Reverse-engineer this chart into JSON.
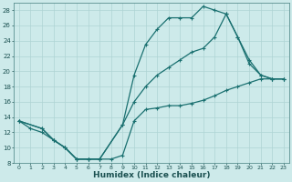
{
  "xlabel": "Humidex (Indice chaleur)",
  "background_color": "#cdeaea",
  "grid_color": "#aed4d4",
  "line_color": "#1a7070",
  "xlim": [
    -0.5,
    23.5
  ],
  "ylim": [
    8,
    29
  ],
  "xticks": [
    0,
    1,
    2,
    3,
    4,
    5,
    6,
    7,
    8,
    9,
    10,
    11,
    12,
    13,
    14,
    15,
    16,
    17,
    18,
    19,
    20,
    21,
    22,
    23
  ],
  "yticks": [
    8,
    10,
    12,
    14,
    16,
    18,
    20,
    22,
    24,
    26,
    28
  ],
  "curve1_x": [
    0,
    1,
    2,
    3,
    4,
    5,
    6,
    7,
    8,
    9,
    10,
    11,
    12,
    13,
    14,
    15,
    16,
    17,
    18,
    19,
    20,
    21,
    22,
    23
  ],
  "curve1_y": [
    13.5,
    12.5,
    12.0,
    11.0,
    10.0,
    8.5,
    8.5,
    8.5,
    8.5,
    9.0,
    13.5,
    15.0,
    15.2,
    15.5,
    15.5,
    15.8,
    16.2,
    16.8,
    17.5,
    18.0,
    18.5,
    19.0,
    19.0,
    19.0
  ],
  "curve2_x": [
    0,
    2,
    3,
    4,
    5,
    6,
    7,
    9,
    10,
    11,
    12,
    13,
    14,
    15,
    16,
    17,
    18,
    19,
    20,
    21,
    22,
    23
  ],
  "curve2_y": [
    13.5,
    12.5,
    11.0,
    10.0,
    8.5,
    8.5,
    8.5,
    13.0,
    19.5,
    23.5,
    25.5,
    27.0,
    27.0,
    27.0,
    28.5,
    28.0,
    27.5,
    24.5,
    21.5,
    19.5,
    19.0,
    19.0
  ],
  "curve3_x": [
    0,
    2,
    3,
    4,
    5,
    6,
    7,
    9,
    10,
    11,
    12,
    13,
    14,
    15,
    16,
    17,
    18,
    19,
    20,
    21,
    22,
    23
  ],
  "curve3_y": [
    13.5,
    12.5,
    11.0,
    10.0,
    8.5,
    8.5,
    8.5,
    13.0,
    16.0,
    18.0,
    19.5,
    20.5,
    21.5,
    22.5,
    23.0,
    24.5,
    27.5,
    24.5,
    21.0,
    19.5,
    19.0,
    19.0
  ]
}
